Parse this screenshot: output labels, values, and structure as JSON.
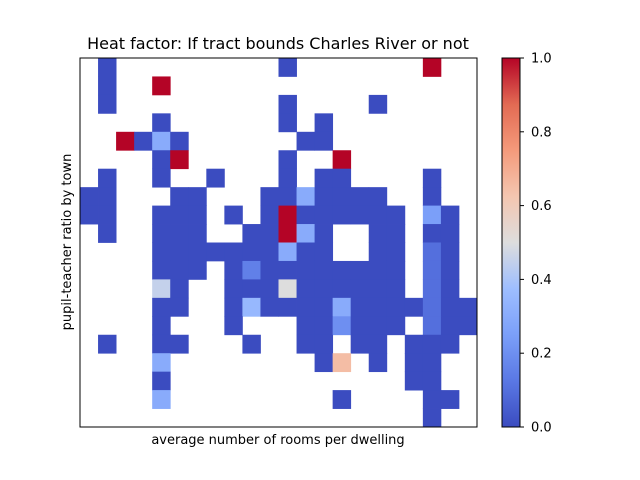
{
  "chart_data": {
    "type": "heatmap",
    "title": "Heat factor: If tract bounds Charles River or not",
    "xlabel": "average number of rooms per dwelling",
    "ylabel": "pupil-teacher ratio by town",
    "grid_cols": 22,
    "grid_rows": 20,
    "colormap": "coolwarm",
    "vmin": 0.0,
    "vmax": 1.0,
    "colorbar_ticks": [
      "0.0",
      "0.2",
      "0.4",
      "0.6",
      "0.8",
      "1.0"
    ],
    "cells": [
      [
        1,
        0,
        0
      ],
      [
        11,
        0,
        0
      ],
      [
        19,
        0,
        1
      ],
      [
        1,
        1,
        0
      ],
      [
        4,
        1,
        1
      ],
      [
        1,
        2,
        0
      ],
      [
        11,
        2,
        0
      ],
      [
        16,
        2,
        0
      ],
      [
        4,
        3,
        0
      ],
      [
        11,
        3,
        0
      ],
      [
        13,
        3,
        0
      ],
      [
        2,
        4,
        1
      ],
      [
        3,
        4,
        0
      ],
      [
        4,
        4,
        0.3
      ],
      [
        5,
        4,
        0
      ],
      [
        12,
        4,
        0
      ],
      [
        13,
        4,
        0
      ],
      [
        4,
        5,
        0
      ],
      [
        5,
        5,
        1
      ],
      [
        11,
        5,
        0
      ],
      [
        14,
        5,
        1
      ],
      [
        1,
        6,
        0
      ],
      [
        4,
        6,
        0
      ],
      [
        7,
        6,
        0
      ],
      [
        11,
        6,
        0
      ],
      [
        13,
        6,
        0
      ],
      [
        14,
        6,
        0
      ],
      [
        19,
        6,
        0
      ],
      [
        0,
        7,
        0
      ],
      [
        1,
        7,
        0
      ],
      [
        5,
        7,
        0
      ],
      [
        6,
        7,
        0
      ],
      [
        10,
        7,
        0
      ],
      [
        11,
        7,
        0
      ],
      [
        12,
        7,
        0.3
      ],
      [
        13,
        7,
        0
      ],
      [
        14,
        7,
        0
      ],
      [
        15,
        7,
        0
      ],
      [
        16,
        7,
        0
      ],
      [
        19,
        7,
        0
      ],
      [
        0,
        8,
        0
      ],
      [
        1,
        8,
        0
      ],
      [
        4,
        8,
        0
      ],
      [
        5,
        8,
        0
      ],
      [
        6,
        8,
        0
      ],
      [
        8,
        8,
        0
      ],
      [
        10,
        8,
        0
      ],
      [
        11,
        8,
        1
      ],
      [
        12,
        8,
        0
      ],
      [
        13,
        8,
        0
      ],
      [
        14,
        8,
        0
      ],
      [
        15,
        8,
        0
      ],
      [
        16,
        8,
        0
      ],
      [
        17,
        8,
        0
      ],
      [
        19,
        8,
        0.25
      ],
      [
        20,
        8,
        0
      ],
      [
        1,
        9,
        0
      ],
      [
        4,
        9,
        0
      ],
      [
        5,
        9,
        0
      ],
      [
        6,
        9,
        0
      ],
      [
        9,
        9,
        0
      ],
      [
        10,
        9,
        0
      ],
      [
        11,
        9,
        1
      ],
      [
        12,
        9,
        0.3
      ],
      [
        13,
        9,
        0
      ],
      [
        16,
        9,
        0
      ],
      [
        17,
        9,
        0
      ],
      [
        19,
        9,
        0
      ],
      [
        20,
        9,
        0
      ],
      [
        4,
        10,
        0
      ],
      [
        5,
        10,
        0
      ],
      [
        6,
        10,
        0
      ],
      [
        7,
        10,
        0
      ],
      [
        8,
        10,
        0
      ],
      [
        9,
        10,
        0
      ],
      [
        10,
        10,
        0
      ],
      [
        11,
        10,
        0.3
      ],
      [
        12,
        10,
        0
      ],
      [
        13,
        10,
        0
      ],
      [
        16,
        10,
        0
      ],
      [
        17,
        10,
        0
      ],
      [
        19,
        10,
        0.1
      ],
      [
        20,
        10,
        0
      ],
      [
        4,
        11,
        0
      ],
      [
        5,
        11,
        0
      ],
      [
        6,
        11,
        0
      ],
      [
        8,
        11,
        0
      ],
      [
        9,
        11,
        0.15
      ],
      [
        10,
        11,
        0
      ],
      [
        11,
        11,
        0
      ],
      [
        12,
        11,
        0
      ],
      [
        13,
        11,
        0
      ],
      [
        14,
        11,
        0
      ],
      [
        15,
        11,
        0
      ],
      [
        16,
        11,
        0
      ],
      [
        17,
        11,
        0
      ],
      [
        19,
        11,
        0.1
      ],
      [
        20,
        11,
        0
      ],
      [
        4,
        12,
        0.45
      ],
      [
        5,
        12,
        0
      ],
      [
        8,
        12,
        0
      ],
      [
        9,
        12,
        0
      ],
      [
        10,
        12,
        0
      ],
      [
        11,
        12,
        0.5
      ],
      [
        12,
        12,
        0
      ],
      [
        13,
        12,
        0
      ],
      [
        14,
        12,
        0
      ],
      [
        15,
        12,
        0
      ],
      [
        16,
        12,
        0
      ],
      [
        17,
        12,
        0
      ],
      [
        19,
        12,
        0.1
      ],
      [
        20,
        12,
        0
      ],
      [
        4,
        13,
        0
      ],
      [
        5,
        13,
        0
      ],
      [
        8,
        13,
        0
      ],
      [
        9,
        13,
        0.35
      ],
      [
        10,
        13,
        0
      ],
      [
        11,
        13,
        0
      ],
      [
        12,
        13,
        0
      ],
      [
        13,
        13,
        0
      ],
      [
        14,
        13,
        0.3
      ],
      [
        15,
        13,
        0
      ],
      [
        16,
        13,
        0
      ],
      [
        17,
        13,
        0
      ],
      [
        18,
        13,
        0
      ],
      [
        19,
        13,
        0.1
      ],
      [
        20,
        13,
        0
      ],
      [
        21,
        13,
        0
      ],
      [
        4,
        14,
        0
      ],
      [
        8,
        14,
        0
      ],
      [
        12,
        14,
        0
      ],
      [
        13,
        14,
        0
      ],
      [
        14,
        14,
        0.2
      ],
      [
        15,
        14,
        0
      ],
      [
        16,
        14,
        0
      ],
      [
        17,
        14,
        0
      ],
      [
        19,
        14,
        0.1
      ],
      [
        20,
        14,
        0
      ],
      [
        21,
        14,
        0
      ],
      [
        1,
        15,
        0
      ],
      [
        4,
        15,
        0
      ],
      [
        5,
        15,
        0
      ],
      [
        9,
        15,
        0
      ],
      [
        12,
        15,
        0
      ],
      [
        13,
        15,
        0
      ],
      [
        15,
        15,
        0
      ],
      [
        16,
        15,
        0
      ],
      [
        18,
        15,
        0
      ],
      [
        19,
        15,
        0
      ],
      [
        20,
        15,
        0
      ],
      [
        4,
        16,
        0.3
      ],
      [
        13,
        16,
        0
      ],
      [
        14,
        16,
        0.65
      ],
      [
        16,
        16,
        0
      ],
      [
        18,
        16,
        0
      ],
      [
        19,
        16,
        0
      ],
      [
        4,
        17,
        0
      ],
      [
        18,
        17,
        0
      ],
      [
        19,
        17,
        0
      ],
      [
        4,
        18,
        0.3
      ],
      [
        14,
        18,
        0
      ],
      [
        19,
        18,
        0
      ],
      [
        20,
        18,
        0
      ],
      [
        19,
        19,
        0
      ]
    ]
  }
}
